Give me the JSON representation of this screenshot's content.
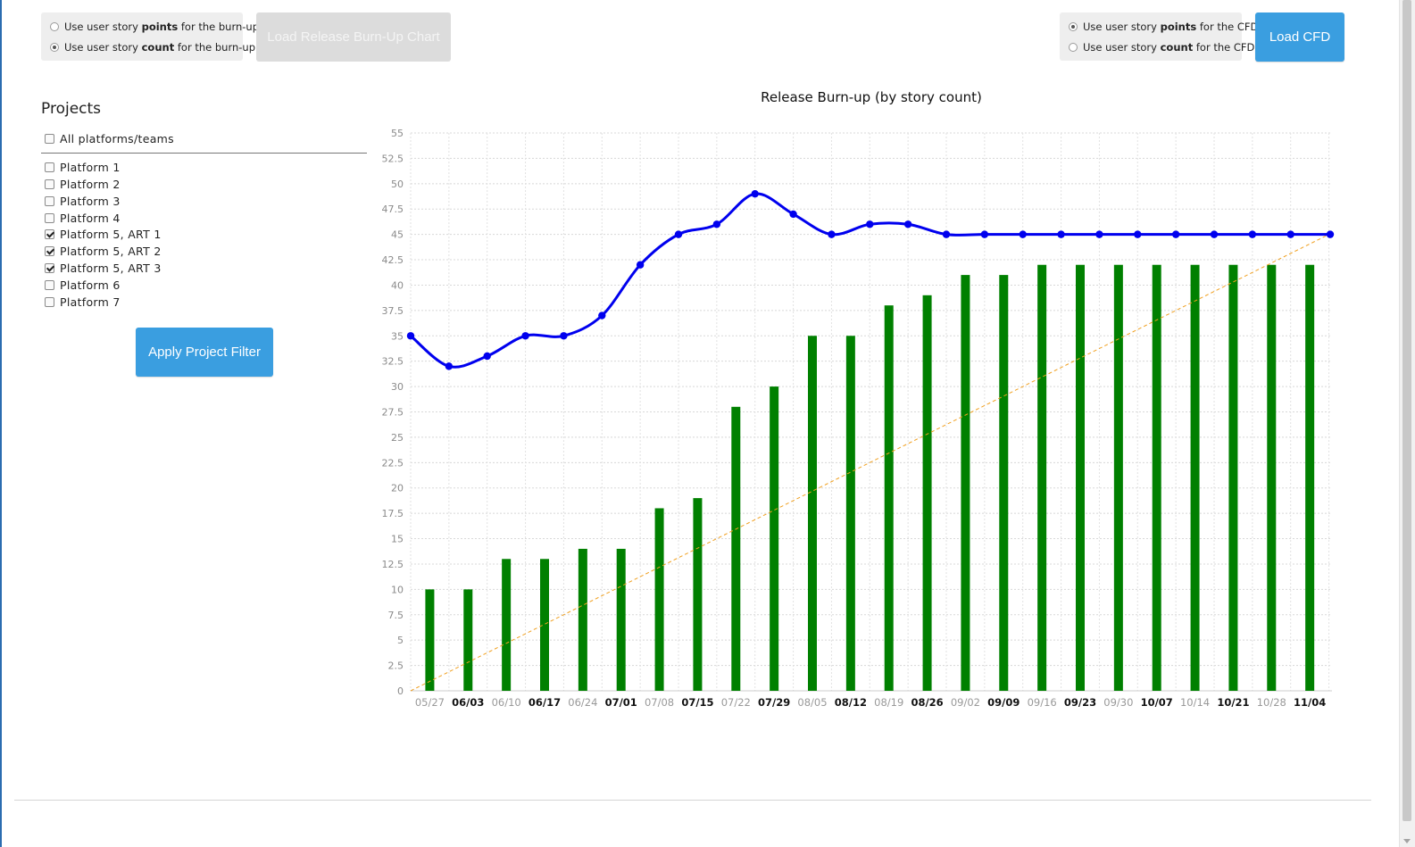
{
  "burnup_options": {
    "points": {
      "prefix": "Use user story ",
      "bold": "points",
      "suffix": " for the burn-up",
      "checked": false
    },
    "count": {
      "prefix": "Use user story ",
      "bold": "count",
      "suffix": " for the burn-up",
      "checked": true
    }
  },
  "load_burnup_button": "Load Release Burn-Up Chart",
  "cfd_options": {
    "points": {
      "prefix": "Use user story ",
      "bold": "points",
      "suffix": " for the CFD",
      "checked": true
    },
    "count": {
      "prefix": "Use user story ",
      "bold": "count",
      "suffix": " for the CFD",
      "checked": false
    }
  },
  "load_cfd_button": "Load CFD",
  "projects": {
    "title": "Projects",
    "all_label": "All platforms/teams",
    "all_checked": false,
    "items": [
      {
        "label": "Platform 1",
        "checked": false
      },
      {
        "label": "Platform 2",
        "checked": false
      },
      {
        "label": "Platform 3",
        "checked": false
      },
      {
        "label": "Platform 4",
        "checked": false
      },
      {
        "label": "Platform 5, ART 1",
        "checked": true
      },
      {
        "label": "Platform 5, ART 2",
        "checked": true
      },
      {
        "label": "Platform 5, ART 3",
        "checked": true
      },
      {
        "label": "Platform 6",
        "checked": false
      },
      {
        "label": "Platform 7",
        "checked": false
      }
    ],
    "apply_button": "Apply Project Filter"
  },
  "colors": {
    "bars": "#008000",
    "scope_line": "#0000ee",
    "ideal_line": "#f0a020",
    "button_blue": "#3a9ee0"
  },
  "chart_data": {
    "type": "bar",
    "title": "Release Burn-up (by story count)",
    "xlabel": "",
    "ylabel": "",
    "ylim": [
      0,
      55
    ],
    "yticks": [
      "0",
      "2.5",
      "5",
      "7.5",
      "10",
      "12.5",
      "15",
      "17.5",
      "20",
      "22.5",
      "25",
      "27.5",
      "30",
      "32.5",
      "35",
      "37.5",
      "40",
      "42.5",
      "45",
      "47.5",
      "50",
      "52.5",
      "55"
    ],
    "categories": [
      "05/27",
      "06/03",
      "06/10",
      "06/17",
      "06/24",
      "07/01",
      "07/08",
      "07/15",
      "07/22",
      "07/29",
      "08/05",
      "08/12",
      "08/19",
      "08/26",
      "09/02",
      "09/09",
      "09/16",
      "09/23",
      "09/30",
      "10/07",
      "10/14",
      "10/21",
      "10/28",
      "11/04"
    ],
    "bold_labels": [
      "06/03",
      "06/17",
      "07/01",
      "07/15",
      "07/29",
      "08/12",
      "08/26",
      "09/09",
      "09/23",
      "10/07",
      "10/21",
      "11/04"
    ],
    "grid": true,
    "legend": "none",
    "series": [
      {
        "type": "bar",
        "values": [
          10,
          10,
          13,
          13,
          14,
          14,
          18,
          19,
          28,
          30,
          35,
          35,
          38,
          39,
          41,
          41,
          42,
          42,
          42,
          42,
          42,
          42,
          42,
          42
        ]
      },
      {
        "type": "line",
        "values": [
          35,
          32,
          33,
          35,
          35,
          37,
          42,
          45,
          46,
          49,
          47,
          45,
          46,
          46,
          45,
          45,
          45,
          45,
          45,
          45,
          45,
          45,
          45,
          45
        ]
      },
      {
        "type": "line-dashed",
        "x_start_index": 0,
        "y_start": 0,
        "x_end_index": 24,
        "y_end": 45
      }
    ]
  }
}
